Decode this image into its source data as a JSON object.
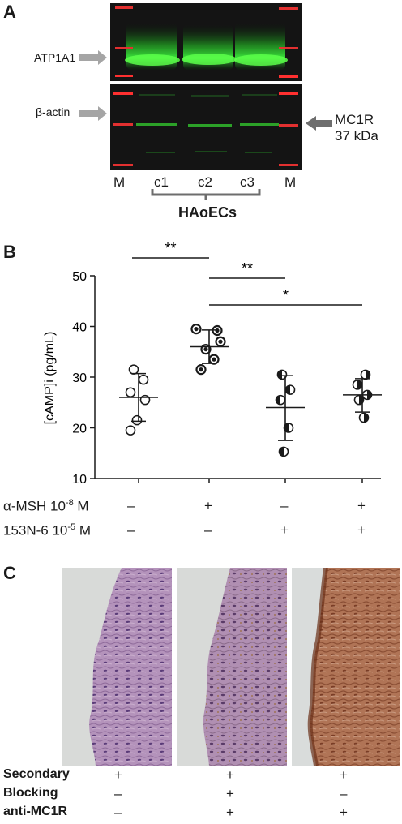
{
  "panelA": {
    "letter": "A",
    "labels": {
      "atp1a1": "ATP1A1",
      "bactin": "β-actin",
      "mc1r": "MC1R",
      "kda": "37 kDa",
      "lane_m_left": "M",
      "lane_c1": "c1",
      "lane_c2": "c2",
      "lane_c3": "c3",
      "lane_m_right": "M",
      "cells": "HAoECs"
    }
  },
  "panelB": {
    "letter": "B",
    "significance": {
      "s1": "**",
      "s2": "**",
      "s3": "*"
    },
    "conditions": {
      "msh_label": "α-MSH 10",
      "msh_exp": "-8",
      "msh_unit": " M",
      "ant_label": "153N-6 10",
      "ant_exp": "-5",
      "ant_unit": " M",
      "msh_signs": [
        "–",
        "+",
        "–",
        "+"
      ],
      "ant_signs": [
        "–",
        "–",
        "+",
        "+"
      ]
    }
  },
  "chart_data": {
    "type": "scatter",
    "title": "",
    "xlabel": "",
    "ylabel": "[cAMP]i (pg/mL)",
    "ylim": [
      10,
      50
    ],
    "yticks": [
      10,
      20,
      30,
      40,
      50
    ],
    "grid": false,
    "series": [
      {
        "group": 1,
        "marker": "open-circle",
        "values": [
          31.5,
          29.5,
          27.0,
          25.5,
          21.5,
          19.5
        ],
        "mean": 26.0,
        "sd_upper": 30.7,
        "sd_lower": 21.3
      },
      {
        "group": 2,
        "marker": "dotted-circle",
        "values": [
          39.5,
          39.2,
          37.0,
          35.5,
          33.5,
          31.5
        ],
        "mean": 36.0,
        "sd_upper": 39.3,
        "sd_lower": 32.7
      },
      {
        "group": 3,
        "marker": "half-left-circle",
        "values": [
          30.5,
          27.5,
          25.5,
          20.0,
          15.3
        ],
        "mean": 24.0,
        "sd_upper": 30.3,
        "sd_lower": 17.5
      },
      {
        "group": 4,
        "marker": "half-right-circle",
        "values": [
          30.5,
          28.5,
          26.5,
          25.5,
          22.0
        ],
        "mean": 26.5,
        "sd_upper": 29.7,
        "sd_lower": 23.1
      }
    ],
    "brackets": [
      {
        "from": 1,
        "to": 2,
        "label": "**"
      },
      {
        "from": 2,
        "to": 3,
        "label": "**"
      },
      {
        "from": 2,
        "to": 4,
        "label": "*"
      }
    ]
  },
  "panelC": {
    "letter": "C",
    "rows": [
      {
        "label": "Secondary",
        "signs": [
          "+",
          "+",
          "+"
        ]
      },
      {
        "label": "Blocking",
        "signs": [
          "–",
          "+",
          "–"
        ]
      },
      {
        "label": "anti-MC1R",
        "signs": [
          "–",
          "+",
          "+"
        ]
      }
    ],
    "colors": {
      "stain_purple": "#b690bb",
      "stain_brown": "#a86a4a",
      "background": "#d9dbd9"
    }
  }
}
